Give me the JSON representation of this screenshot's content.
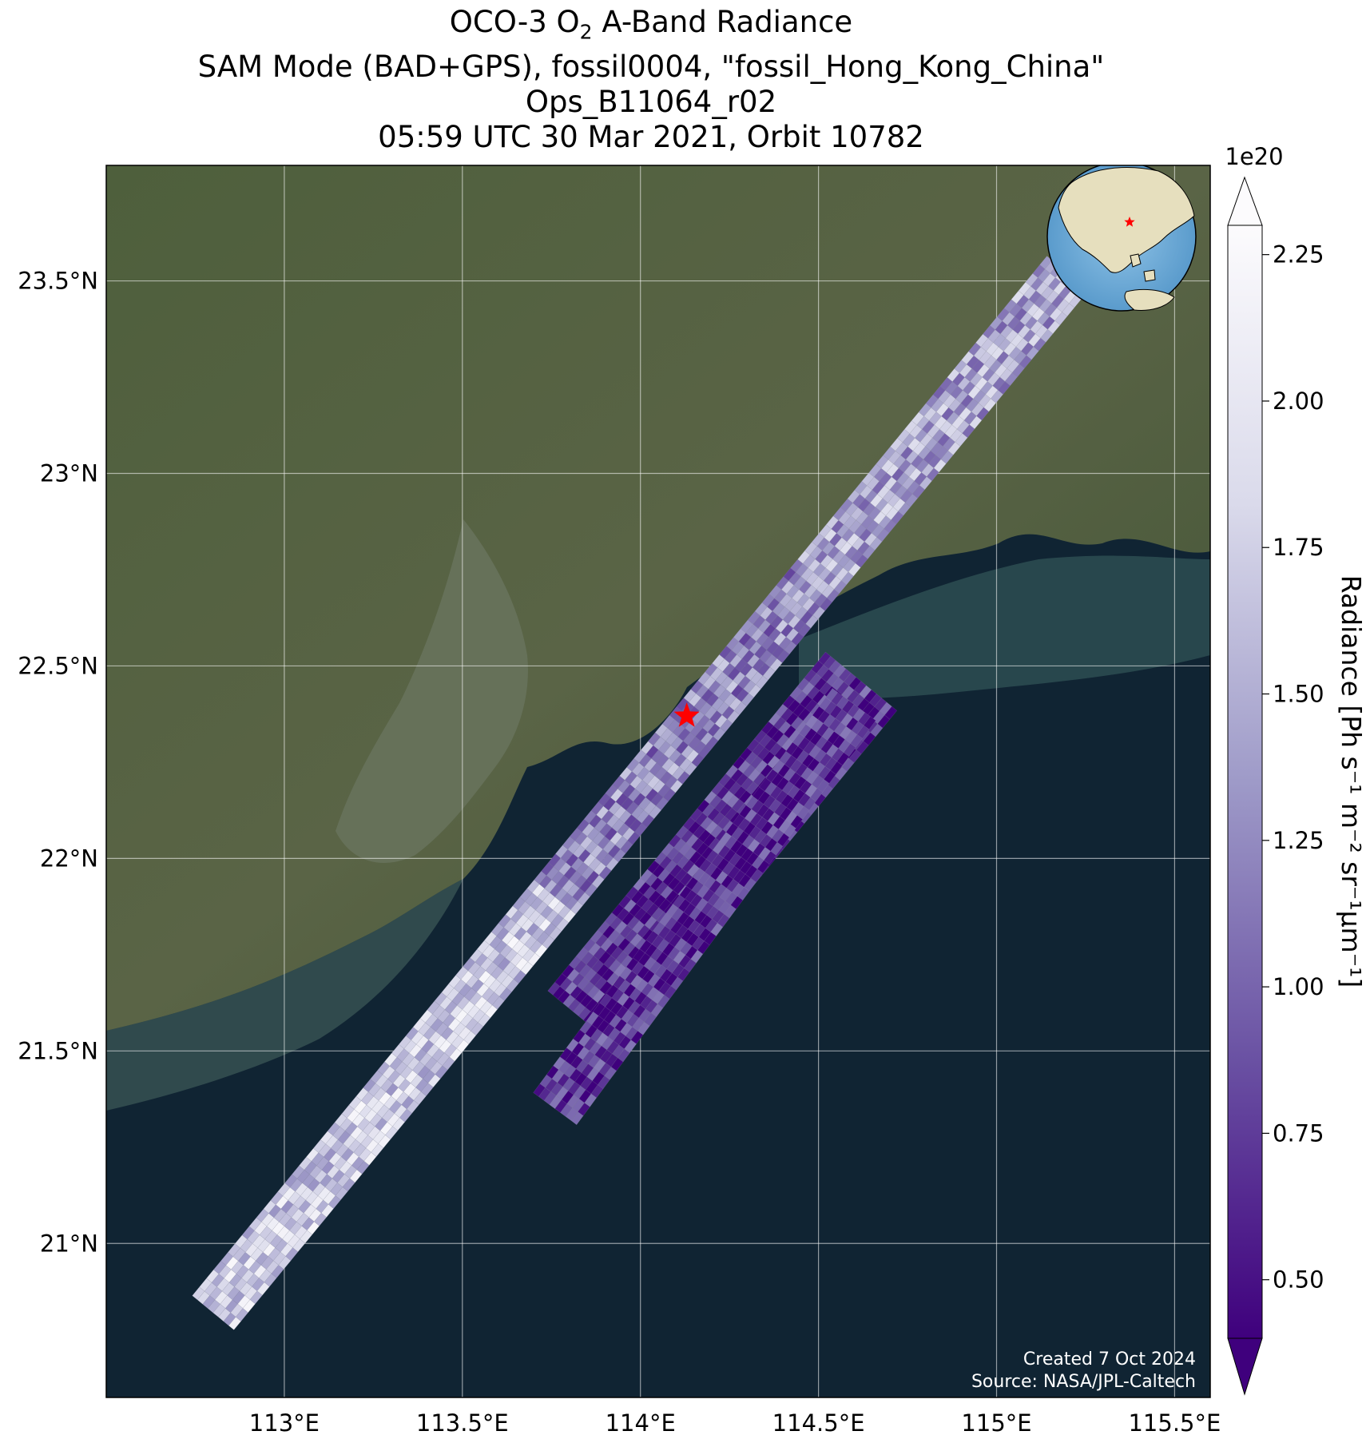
{
  "title": {
    "line1_prefix": "OCO-3 O",
    "line1_sub": "2",
    "line1_suffix": " A-Band Radiance",
    "line2": "SAM Mode (BAD+GPS), fossil0004, \"fossil_Hong_Kong_China\"",
    "line3": "Ops_B11064_r02",
    "line4": "05:59 UTC 30 Mar 2021, Orbit 10782"
  },
  "map": {
    "lon_range": [
      112.5,
      115.6
    ],
    "lat_range": [
      20.6,
      23.8
    ],
    "lon_ticks": [
      {
        "value": 113.0,
        "label": "113°E"
      },
      {
        "value": 113.5,
        "label": "113.5°E"
      },
      {
        "value": 114.0,
        "label": "114°E"
      },
      {
        "value": 114.5,
        "label": "114.5°E"
      },
      {
        "value": 115.0,
        "label": "115°E"
      },
      {
        "value": 115.5,
        "label": "115.5°E"
      }
    ],
    "lat_ticks": [
      {
        "value": 21.0,
        "label": "21°N"
      },
      {
        "value": 21.5,
        "label": "21.5°N"
      },
      {
        "value": 22.0,
        "label": "22°N"
      },
      {
        "value": 22.5,
        "label": "22.5°N"
      },
      {
        "value": 23.0,
        "label": "23°N"
      },
      {
        "value": 23.5,
        "label": "23.5°N"
      }
    ],
    "target": {
      "lon": 114.13,
      "lat": 22.37,
      "color": "#ff0000"
    },
    "swaths": [
      {
        "start": {
          "lon": 112.8,
          "lat": 20.82
        },
        "end": {
          "lon": 115.2,
          "lat": 23.52
        },
        "half_width_lat": 0.07
      },
      {
        "start": {
          "lon": 113.84,
          "lat": 21.58
        },
        "end": {
          "lon": 114.62,
          "lat": 22.46
        },
        "half_width_lat": 0.12
      },
      {
        "start": {
          "lon": 113.76,
          "lat": 21.35
        },
        "end": {
          "lon": 114.6,
          "lat": 22.4
        },
        "half_width_lat": 0.07
      }
    ],
    "grid": true,
    "inset_globe": {
      "position": "top-right",
      "star_color": "#ff0000"
    }
  },
  "colorbar": {
    "label": "Radiance [Ph s⁻¹ m⁻² sr⁻¹µm⁻¹]",
    "multiplier": "1e20",
    "range": [
      0.4,
      2.3
    ],
    "ticks": [
      {
        "value": 0.5,
        "label": "0.50"
      },
      {
        "value": 0.75,
        "label": "0.75"
      },
      {
        "value": 1.0,
        "label": "1.00"
      },
      {
        "value": 1.25,
        "label": "1.25"
      },
      {
        "value": 1.5,
        "label": "1.50"
      },
      {
        "value": 1.75,
        "label": "1.75"
      },
      {
        "value": 2.0,
        "label": "2.00"
      },
      {
        "value": 2.25,
        "label": "2.25"
      }
    ],
    "colors": [
      "#3f007d",
      "#6a51a3",
      "#9e9ac8",
      "#dadaeb",
      "#fcfbfd"
    ]
  },
  "credits": {
    "created": "Created 7 Oct 2024",
    "source": "Source: NASA/JPL-Caltech"
  }
}
